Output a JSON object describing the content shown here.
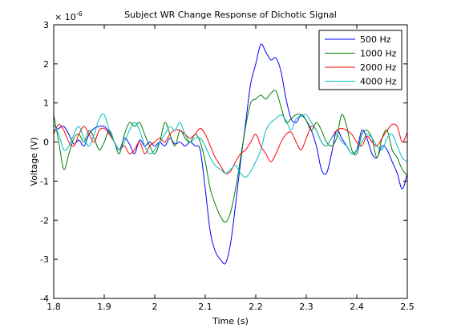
{
  "chart_data": {
    "type": "line",
    "title": "Subject WR Change Response of Dichotic Signal",
    "xlabel": "Time (s)",
    "ylabel": "Voltage (V)",
    "y_exponent_label": "× 10",
    "y_exponent_power": "-6",
    "xlim": [
      1.8,
      2.5
    ],
    "ylim": [
      -4,
      3
    ],
    "xticks": [
      "1.8",
      "1.9",
      "2",
      "2.1",
      "2.2",
      "2.3",
      "2.4",
      "2.5"
    ],
    "xtick_values": [
      1.8,
      1.9,
      2.0,
      2.1,
      2.2,
      2.3,
      2.4,
      2.5
    ],
    "yticks": [
      "-4",
      "-3",
      "-2",
      "-1",
      "0",
      "1",
      "2",
      "3"
    ],
    "ytick_values": [
      -4,
      -3,
      -2,
      -1,
      0,
      1,
      2,
      3
    ],
    "grid": false,
    "legend_position": "top-right",
    "series": [
      {
        "name": "500 Hz",
        "color": "#0000ff",
        "x": [
          1.8,
          1.81,
          1.82,
          1.83,
          1.84,
          1.85,
          1.86,
          1.87,
          1.88,
          1.89,
          1.9,
          1.91,
          1.92,
          1.93,
          1.94,
          1.95,
          1.96,
          1.97,
          1.98,
          1.99,
          2.0,
          2.01,
          2.02,
          2.03,
          2.04,
          2.05,
          2.06,
          2.07,
          2.08,
          2.09,
          2.1,
          2.11,
          2.12,
          2.13,
          2.14,
          2.15,
          2.16,
          2.17,
          2.18,
          2.19,
          2.2,
          2.21,
          2.22,
          2.23,
          2.24,
          2.25,
          2.26,
          2.27,
          2.28,
          2.29,
          2.3,
          2.31,
          2.32,
          2.33,
          2.34,
          2.35,
          2.36,
          2.37,
          2.38,
          2.39,
          2.4,
          2.41,
          2.42,
          2.43,
          2.44,
          2.45,
          2.46,
          2.47,
          2.48,
          2.49,
          2.5
        ],
        "values": [
          0.3,
          0.35,
          0.4,
          0.2,
          -0.05,
          0.05,
          -0.1,
          0.2,
          0.35,
          0.4,
          0.4,
          0.25,
          0.0,
          -0.2,
          0.1,
          -0.05,
          -0.3,
          0.05,
          -0.1,
          0.0,
          -0.1,
          0.0,
          -0.1,
          0.1,
          -0.05,
          0.0,
          -0.1,
          0.0,
          -0.1,
          -0.2,
          -1.2,
          -2.3,
          -2.8,
          -3.0,
          -3.1,
          -2.6,
          -1.6,
          -0.5,
          0.5,
          1.5,
          2.0,
          2.5,
          2.3,
          2.1,
          2.15,
          1.8,
          1.1,
          0.6,
          0.5,
          0.7,
          0.55,
          0.3,
          -0.1,
          -0.7,
          -0.8,
          -0.3,
          0.3,
          0.1,
          -0.1,
          -0.3,
          -0.2,
          0.3,
          0.1,
          -0.3,
          -0.4,
          -0.1,
          -0.2,
          -0.5,
          -0.8,
          -1.2,
          -0.8
        ]
      },
      {
        "name": "1000 Hz",
        "color": "#008000",
        "x": [
          1.8,
          1.81,
          1.82,
          1.83,
          1.84,
          1.85,
          1.86,
          1.87,
          1.88,
          1.89,
          1.9,
          1.91,
          1.92,
          1.93,
          1.94,
          1.95,
          1.96,
          1.97,
          1.98,
          1.99,
          2.0,
          2.01,
          2.02,
          2.03,
          2.04,
          2.05,
          2.06,
          2.07,
          2.08,
          2.09,
          2.1,
          2.11,
          2.12,
          2.13,
          2.14,
          2.15,
          2.16,
          2.17,
          2.18,
          2.19,
          2.2,
          2.21,
          2.22,
          2.23,
          2.24,
          2.25,
          2.26,
          2.27,
          2.28,
          2.29,
          2.3,
          2.31,
          2.32,
          2.33,
          2.34,
          2.35,
          2.36,
          2.37,
          2.38,
          2.39,
          2.4,
          2.41,
          2.42,
          2.43,
          2.44,
          2.45,
          2.46,
          2.47,
          2.48,
          2.49,
          2.5
        ],
        "values": [
          0.7,
          0.0,
          -0.7,
          -0.3,
          0.1,
          0.2,
          0.0,
          0.3,
          0.1,
          -0.2,
          0.0,
          0.3,
          0.0,
          -0.3,
          0.2,
          0.5,
          0.4,
          0.5,
          0.2,
          -0.1,
          -0.3,
          0.0,
          0.5,
          0.2,
          -0.1,
          0.3,
          0.1,
          0.0,
          0.2,
          0.0,
          -0.5,
          -1.2,
          -1.6,
          -1.9,
          -2.05,
          -1.8,
          -1.2,
          -0.4,
          0.4,
          1.0,
          1.1,
          1.2,
          1.1,
          1.25,
          1.3,
          0.9,
          0.5,
          0.6,
          0.7,
          0.7,
          0.55,
          0.3,
          0.5,
          0.3,
          0.0,
          -0.1,
          0.1,
          0.7,
          0.4,
          -0.2,
          -0.3,
          0.2,
          0.3,
          0.1,
          -0.4,
          0.1,
          0.3,
          -0.2,
          -0.4,
          -0.7,
          -0.85
        ]
      },
      {
        "name": "2000 Hz",
        "color": "#ff0000",
        "x": [
          1.8,
          1.81,
          1.82,
          1.83,
          1.84,
          1.85,
          1.86,
          1.87,
          1.88,
          1.89,
          1.9,
          1.91,
          1.92,
          1.93,
          1.94,
          1.95,
          1.96,
          1.97,
          1.98,
          1.99,
          2.0,
          2.01,
          2.02,
          2.03,
          2.04,
          2.05,
          2.06,
          2.07,
          2.08,
          2.09,
          2.1,
          2.11,
          2.12,
          2.13,
          2.14,
          2.15,
          2.16,
          2.17,
          2.18,
          2.19,
          2.2,
          2.21,
          2.22,
          2.23,
          2.24,
          2.25,
          2.26,
          2.27,
          2.28,
          2.29,
          2.3,
          2.31,
          2.32,
          2.33,
          2.34,
          2.35,
          2.36,
          2.37,
          2.38,
          2.39,
          2.4,
          2.41,
          2.42,
          2.43,
          2.44,
          2.45,
          2.46,
          2.47,
          2.48,
          2.49,
          2.5
        ],
        "values": [
          0.2,
          0.45,
          0.3,
          0.0,
          -0.1,
          0.2,
          0.4,
          0.2,
          0.0,
          0.3,
          0.35,
          0.2,
          0.0,
          -0.2,
          -0.1,
          -0.3,
          -0.2,
          0.0,
          -0.3,
          -0.1,
          0.0,
          0.1,
          0.0,
          0.2,
          0.3,
          0.3,
          0.2,
          0.1,
          0.2,
          0.35,
          0.2,
          -0.1,
          -0.4,
          -0.6,
          -0.8,
          -0.75,
          -0.5,
          -0.3,
          -0.2,
          0.0,
          0.2,
          -0.1,
          -0.3,
          -0.5,
          -0.3,
          0.0,
          0.2,
          0.25,
          0.0,
          -0.2,
          0.1,
          0.4,
          0.3,
          0.0,
          -0.1,
          0.1,
          0.3,
          0.35,
          0.3,
          0.2,
          0.0,
          -0.1,
          0.15,
          0.0,
          -0.1,
          0.1,
          0.3,
          0.45,
          0.4,
          0.0,
          0.25
        ]
      },
      {
        "name": "4000 Hz",
        "color": "#00bfbf",
        "x": [
          1.8,
          1.81,
          1.82,
          1.83,
          1.84,
          1.85,
          1.86,
          1.87,
          1.88,
          1.89,
          1.9,
          1.91,
          1.92,
          1.93,
          1.94,
          1.95,
          1.96,
          1.97,
          1.98,
          1.99,
          2.0,
          2.01,
          2.02,
          2.03,
          2.04,
          2.05,
          2.06,
          2.07,
          2.08,
          2.09,
          2.1,
          2.11,
          2.12,
          2.13,
          2.14,
          2.15,
          2.16,
          2.17,
          2.18,
          2.19,
          2.2,
          2.21,
          2.22,
          2.23,
          2.24,
          2.25,
          2.26,
          2.27,
          2.28,
          2.29,
          2.3,
          2.31,
          2.32,
          2.33,
          2.34,
          2.35,
          2.36,
          2.37,
          2.38,
          2.39,
          2.4,
          2.41,
          2.42,
          2.43,
          2.44,
          2.45,
          2.46,
          2.47,
          2.48,
          2.49,
          2.5
        ],
        "values": [
          0.45,
          0.2,
          -0.2,
          -0.1,
          0.2,
          0.4,
          0.1,
          -0.1,
          0.2,
          0.6,
          0.7,
          0.3,
          0.0,
          -0.2,
          0.0,
          0.3,
          0.5,
          0.3,
          -0.1,
          -0.3,
          -0.2,
          0.0,
          0.2,
          0.4,
          0.3,
          0.5,
          0.2,
          0.0,
          0.1,
          0.1,
          -0.1,
          -0.4,
          -0.6,
          -0.7,
          -0.8,
          -0.7,
          -0.6,
          -0.8,
          -0.9,
          -0.75,
          -0.5,
          -0.2,
          0.3,
          0.5,
          0.6,
          0.7,
          0.55,
          0.3,
          0.6,
          0.65,
          0.7,
          0.5,
          0.3,
          0.0,
          -0.1,
          0.1,
          0.2,
          0.0,
          -0.1,
          -0.3,
          -0.2,
          0.0,
          0.2,
          0.1,
          -0.1,
          -0.2,
          0.1,
          0.2,
          -0.1,
          -0.4,
          -0.5
        ]
      }
    ]
  }
}
